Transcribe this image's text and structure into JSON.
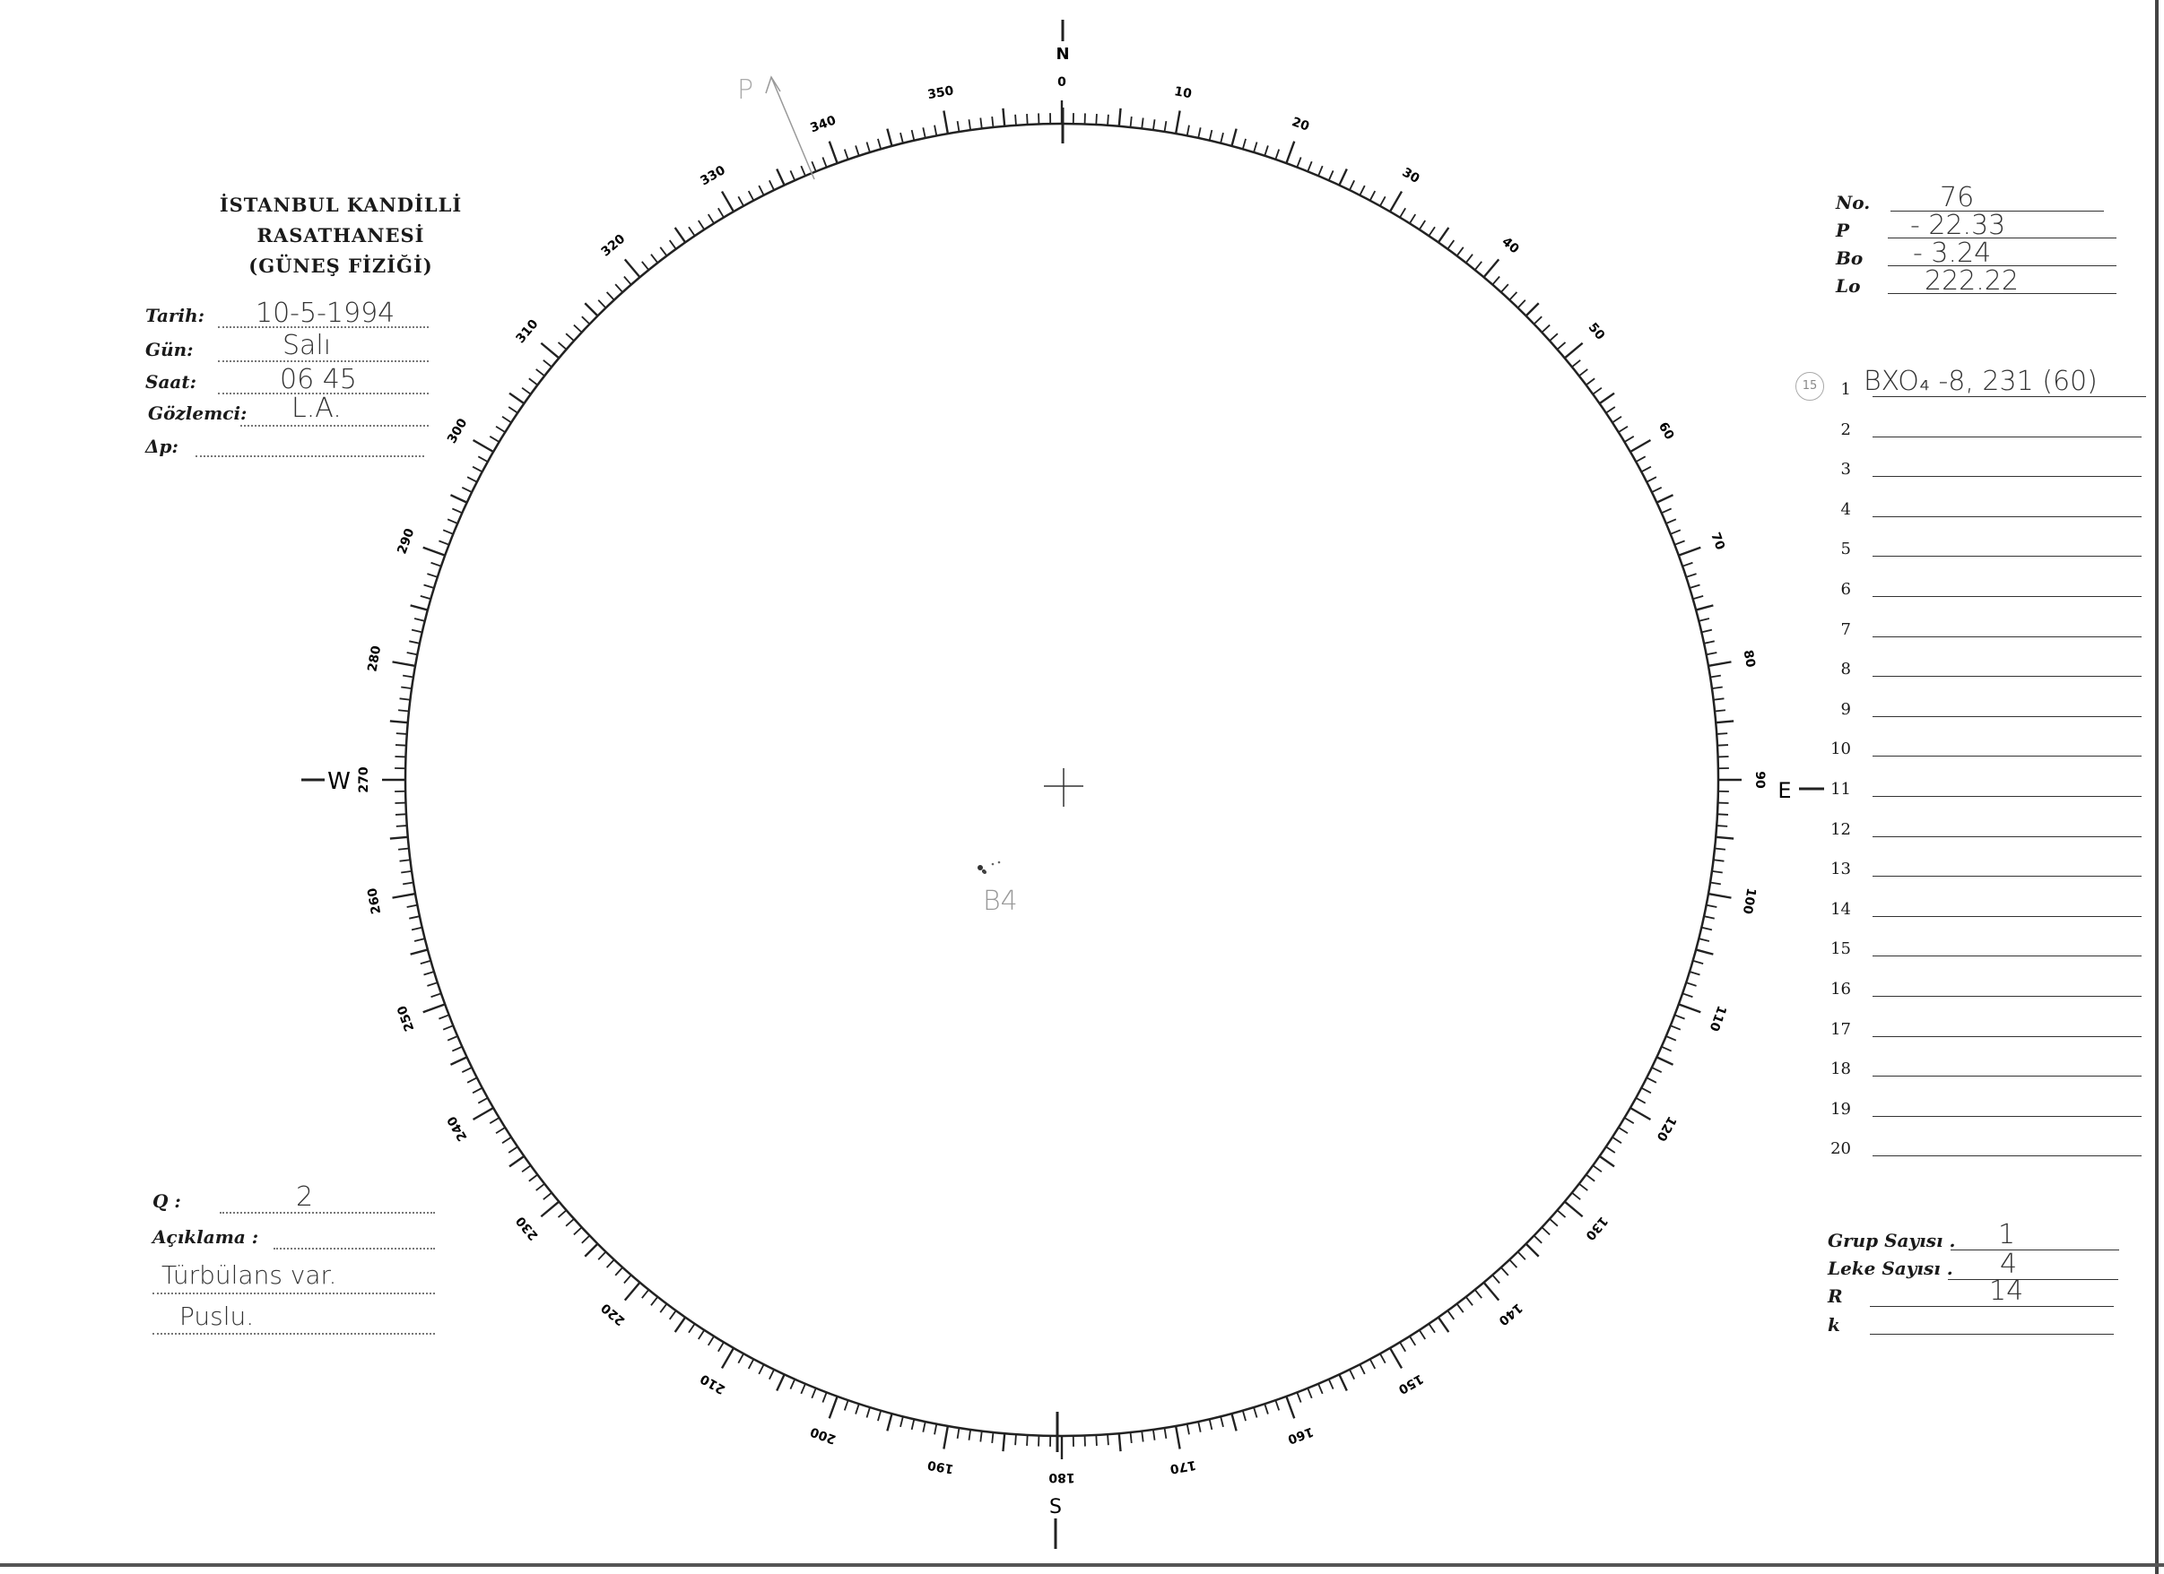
{
  "header": {
    "institution": "İSTANBUL KANDİLLİ RASATHANESİ",
    "department": "(GÜNEŞ FİZİĞİ)"
  },
  "left_fields": [
    {
      "label": "Tarih:",
      "value": "10-5-1994"
    },
    {
      "label": "Gün:",
      "value": "Salı"
    },
    {
      "label": "Saat:",
      "value": "06 45"
    },
    {
      "label": "Gözlemci:",
      "value": "L.A."
    },
    {
      "label": "Δp:",
      "value": ""
    }
  ],
  "right_fields": [
    {
      "label": "No.",
      "value": "76"
    },
    {
      "label": "P",
      "value": "- 22.33"
    },
    {
      "label": "Bo",
      "value": "- 3.24"
    },
    {
      "label": "Lo",
      "value": "222.22"
    }
  ],
  "groups": {
    "circled_number": "15",
    "rows": [
      "1",
      "2",
      "3",
      "4",
      "5",
      "6",
      "7",
      "8",
      "9",
      "10",
      "11",
      "12",
      "13",
      "14",
      "15",
      "16",
      "17",
      "18",
      "19",
      "20"
    ],
    "row1_entry": "BXO₄ -8, 231 (60)"
  },
  "bottom_left": {
    "q_label": "Q :",
    "q_value": "2",
    "note_label": "Açıklama :",
    "note_line1": "Türbülans var.",
    "note_line2": "Puslu."
  },
  "bottom_right": [
    {
      "label": "Grup Sayısı .",
      "value": "1"
    },
    {
      "label": "Leke Sayısı .",
      "value": "4"
    },
    {
      "label": "R",
      "value": "14"
    },
    {
      "label": "k",
      "value": ""
    }
  ],
  "disk": {
    "cardinals": {
      "north": "N",
      "east": "E",
      "south": "S",
      "west": "W"
    },
    "scale_labels": [
      "0",
      "10",
      "20",
      "30",
      "40",
      "50",
      "60",
      "70",
      "80",
      "90",
      "100",
      "110",
      "120",
      "130",
      "140",
      "150",
      "160",
      "170",
      "180",
      "190",
      "200",
      "210",
      "220",
      "230",
      "240",
      "250",
      "260",
      "270",
      "280",
      "290",
      "300",
      "310",
      "320",
      "330",
      "340",
      "350"
    ],
    "p_axis_label": "P",
    "sunspot_label": "B4"
  }
}
